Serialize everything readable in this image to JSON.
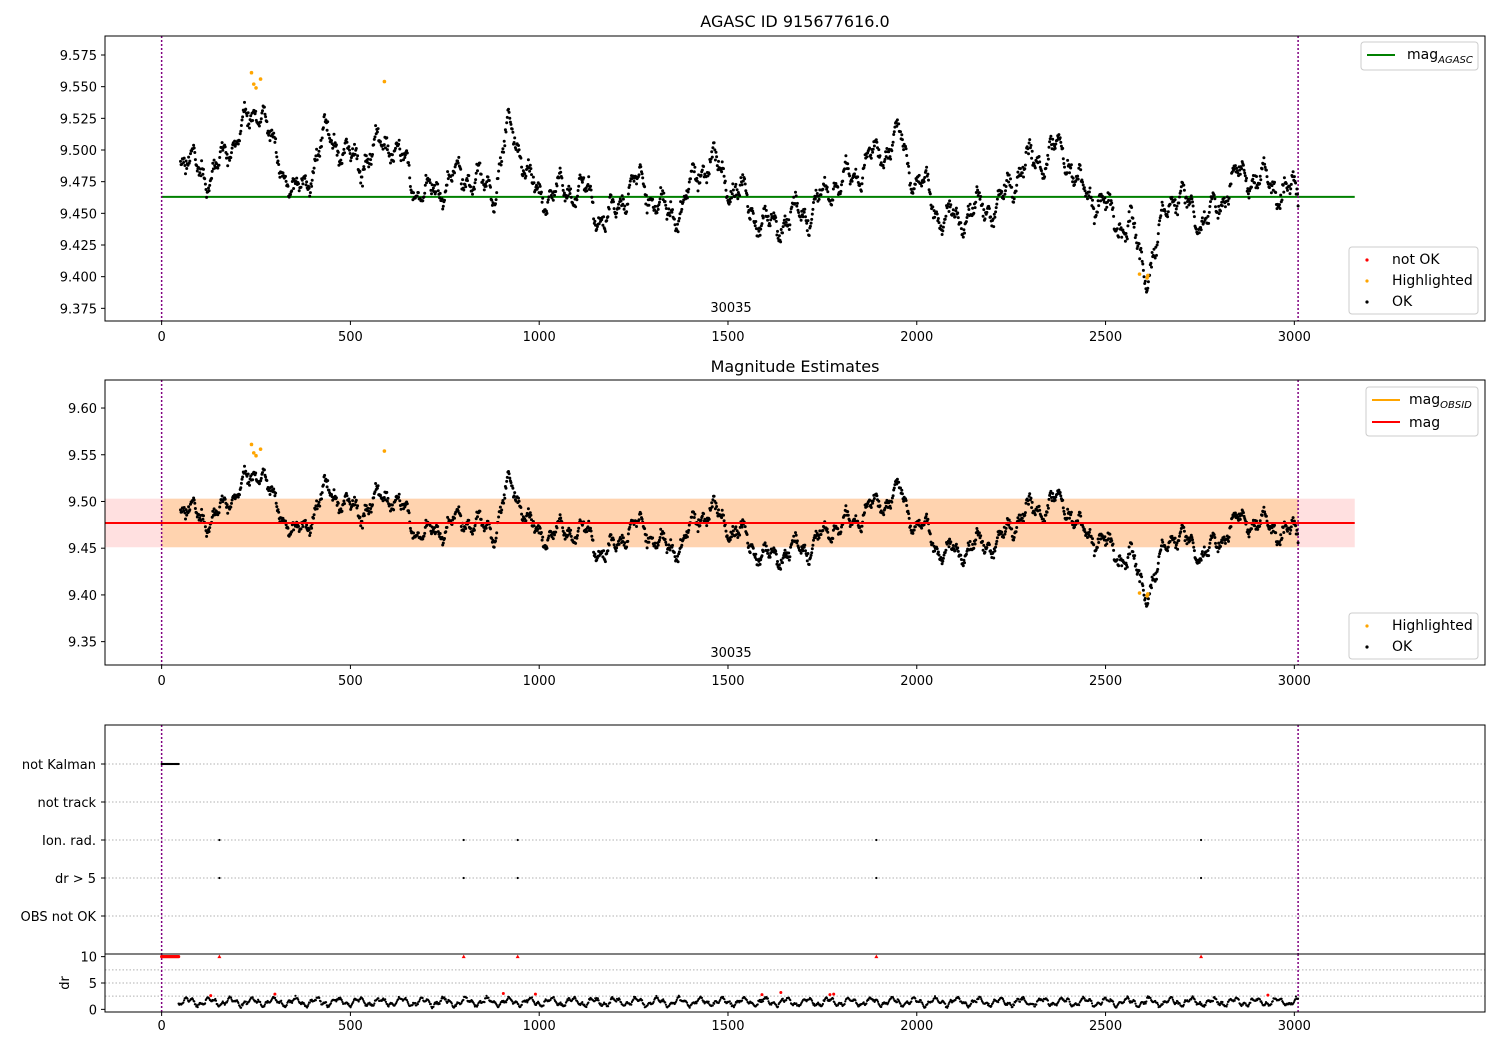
{
  "chart_data": [
    {
      "type": "scatter",
      "title": "AGASC ID 915677616.0",
      "xlim": [
        -150,
        3505
      ],
      "ylim": [
        9.365,
        9.59
      ],
      "x_ticks": [
        0,
        500,
        1000,
        1500,
        2000,
        2500,
        3000
      ],
      "y_ticks": [
        9.375,
        9.4,
        9.425,
        9.45,
        9.475,
        9.5,
        9.525,
        9.55,
        9.575
      ],
      "obsid_label": "30035",
      "obsid_boundaries": [
        0,
        3010
      ],
      "reference_line": {
        "name": "mag",
        "subscript": "AGASC",
        "value": 9.463,
        "x_range": [
          0,
          3160
        ],
        "color": "#008000"
      },
      "legend_top": [
        {
          "label": "mag",
          "subscript": "AGASC",
          "color": "#008000"
        }
      ],
      "legend_bottom": [
        {
          "label": "not OK",
          "color": "#ff0000"
        },
        {
          "label": "Highlighted",
          "color": "#ffa500"
        },
        {
          "label": "OK",
          "color": "#000000"
        }
      ],
      "series": [
        {
          "name": "OK",
          "color": "#000000",
          "x_range": [
            50,
            3010
          ],
          "n_points": 1800
        },
        {
          "name": "Highlighted",
          "color": "#ffa500",
          "points": [
            [
              238,
              9.561
            ],
            [
              244,
              9.552
            ],
            [
              250,
              9.549
            ],
            [
              262,
              9.556
            ],
            [
              590,
              9.554
            ],
            [
              2590,
              9.402
            ],
            [
              2610,
              9.399
            ],
            [
              2612,
              9.401
            ]
          ]
        }
      ],
      "trend_knots": [
        [
          50,
          9.495
        ],
        [
          120,
          9.48
        ],
        [
          230,
          9.52
        ],
        [
          260,
          9.535
        ],
        [
          310,
          9.49
        ],
        [
          360,
          9.465
        ],
        [
          440,
          9.51
        ],
        [
          520,
          9.49
        ],
        [
          600,
          9.505
        ],
        [
          700,
          9.465
        ],
        [
          800,
          9.48
        ],
        [
          880,
          9.47
        ],
        [
          920,
          9.515
        ],
        [
          1000,
          9.465
        ],
        [
          1100,
          9.47
        ],
        [
          1180,
          9.445
        ],
        [
          1250,
          9.475
        ],
        [
          1350,
          9.45
        ],
        [
          1450,
          9.49
        ],
        [
          1530,
          9.465
        ],
        [
          1600,
          9.44
        ],
        [
          1700,
          9.45
        ],
        [
          1800,
          9.475
        ],
        [
          1900,
          9.495
        ],
        [
          1950,
          9.51
        ],
        [
          2000,
          9.475
        ],
        [
          2080,
          9.445
        ],
        [
          2200,
          9.455
        ],
        [
          2300,
          9.49
        ],
        [
          2380,
          9.5
        ],
        [
          2450,
          9.465
        ],
        [
          2560,
          9.44
        ],
        [
          2610,
          9.405
        ],
        [
          2680,
          9.465
        ],
        [
          2760,
          9.445
        ],
        [
          2860,
          9.48
        ],
        [
          3010,
          9.465
        ]
      ]
    },
    {
      "type": "scatter",
      "title": "Magnitude Estimates",
      "xlim": [
        -150,
        3505
      ],
      "ylim": [
        9.325,
        9.63
      ],
      "x_ticks": [
        0,
        500,
        1000,
        1500,
        2000,
        2500,
        3000
      ],
      "y_ticks": [
        9.35,
        9.4,
        9.45,
        9.5,
        9.55,
        9.6
      ],
      "obsid_label": "30035",
      "obsid_boundaries": [
        0,
        3010
      ],
      "mag_obsid": {
        "value": 9.477,
        "band": [
          9.451,
          9.503
        ],
        "x_range": [
          0,
          3010
        ],
        "color": "#ffa500"
      },
      "mag": {
        "value": 9.477,
        "band": [
          9.451,
          9.503
        ],
        "x_range": [
          -150,
          3160
        ],
        "color": "#ff0000"
      },
      "legend_top": [
        {
          "label": "mag",
          "subscript": "OBSID",
          "color": "#ffa500"
        },
        {
          "label": "mag",
          "color": "#ff0000"
        }
      ],
      "legend_bottom": [
        {
          "label": "Highlighted",
          "color": "#ffa500"
        },
        {
          "label": "OK",
          "color": "#000000"
        }
      ]
    },
    {
      "type": "scatter",
      "title": "",
      "xlim": [
        -150,
        3505
      ],
      "x_ticks": [
        0,
        500,
        1000,
        1500,
        2000,
        2500,
        3000
      ],
      "flag_labels": [
        "not Kalman",
        "not track",
        "Ion. rad.",
        "dr > 5",
        "OBS not OK"
      ],
      "flags": {
        "not Kalman": {
          "x_range": [
            0,
            45
          ]
        },
        "not track": {
          "x": []
        },
        "Ion. rad.": {
          "x": [
            153,
            800,
            943,
            1893,
            2753
          ]
        },
        "dr > 5": {
          "x": [
            153,
            800,
            943,
            1893,
            2753
          ]
        },
        "OBS not OK": {
          "x": []
        }
      },
      "dr_ylabel": "dr",
      "dr_ylim": [
        -0.5,
        10.5
      ],
      "dr_ticks": [
        0,
        5,
        10
      ],
      "dr_clipped_value": 10,
      "dr_clipped_x": [
        153,
        800,
        943,
        1893,
        2753
      ],
      "dr_red_points": [
        [
          130,
          2.6
        ],
        [
          300,
          2.9
        ],
        [
          905,
          3.0
        ],
        [
          990,
          2.9
        ],
        [
          1590,
          2.8
        ],
        [
          1640,
          3.2
        ],
        [
          1770,
          2.8
        ],
        [
          1780,
          2.9
        ],
        [
          2930,
          2.7
        ]
      ]
    }
  ]
}
